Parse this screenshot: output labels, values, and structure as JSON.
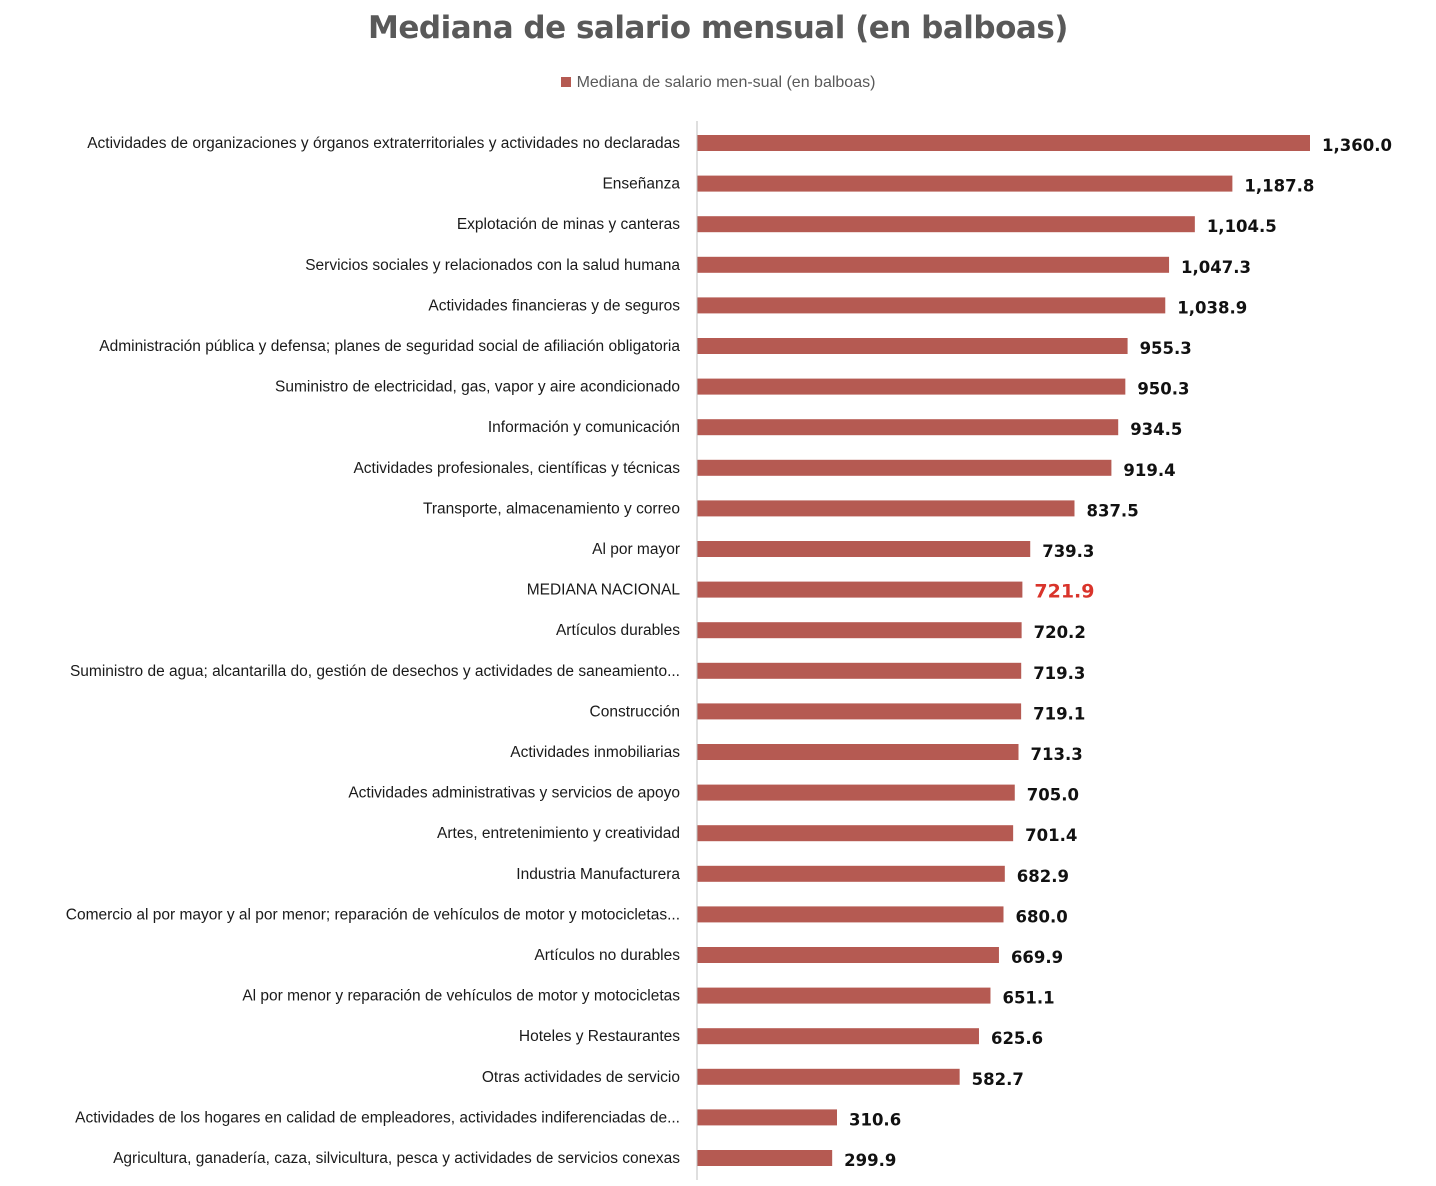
{
  "chart_data": {
    "type": "bar",
    "orientation": "horizontal",
    "title": "Mediana de salario mensual (en balboas)",
    "legend": {
      "position": "top",
      "entries": [
        "Mediana de salario men-sual (en balboas)"
      ]
    },
    "series": [
      {
        "name": "Mediana de salario men-sual (en balboas)",
        "color": "#b55a52"
      }
    ],
    "highlight_color": "#d9342b",
    "xlim": [
      0,
      1500
    ],
    "grid": false,
    "categories": [
      "Actividades de organizaciones y órganos extraterritoriales y  actividades no declaradas",
      "Enseñanza",
      "Explotación de minas y canteras",
      "Servicios sociales y relacionados  con la salud humana",
      "Actividades financieras y  de seguros",
      "Administración pública y defensa;  planes de seguridad social  de afiliación obligatoria",
      "Suministro de electricidad, gas, vapor y aire acondicionado",
      "Información y comunicación",
      "Actividades profesionales,  científicas y técnicas",
      "Transporte, almacenamiento y correo",
      "Al por mayor",
      "MEDIANA NACIONAL",
      "Artículos durables",
      "Suministro de agua; alcantarilla do,  gestión  de  desechos  y  actividades de saneamiento...",
      "Construcción",
      "Actividades inmobiliarias",
      "Actividades administrativas y  servicios de apoyo",
      "Artes, entretenimiento y  creatividad",
      "Industria Manufacturera",
      "Comercio  al por  mayor  y  al por  menor; reparación de vehículos  de motor y motocicletas...",
      "Artículos no durables",
      "Al por menor y reparación de  vehículos de motor y  motocicletas",
      "Hoteles y Restaurantes",
      "Otras actividades de servicio",
      "Actividades de los hogares en calidad de empleadores, actividades  indiferenciadas de...",
      "Agricultura,  ganadería,  caza,  silvicultura, pesca y actividades  de servicios conexas"
    ],
    "values": [
      1360.0,
      1187.8,
      1104.5,
      1047.3,
      1038.9,
      955.3,
      950.3,
      934.5,
      919.4,
      837.5,
      739.3,
      721.9,
      720.2,
      719.3,
      719.1,
      713.3,
      705.0,
      701.4,
      682.9,
      680.0,
      669.9,
      651.1,
      625.6,
      582.7,
      310.6,
      299.9
    ],
    "value_labels": [
      "1,360.0",
      "1,187.8",
      "1,104.5",
      "1,047.3",
      "1,038.9",
      "955.3",
      "950.3",
      "934.5",
      "919.4",
      "837.5",
      "739.3",
      "721.9",
      "720.2",
      "719.3",
      "719.1",
      "713.3",
      "705.0",
      "701.4",
      "682.9",
      "680.0",
      "669.9",
      "651.1",
      "625.6",
      "582.7",
      "310.6",
      "299.9"
    ],
    "highlight_category": "MEDIANA NACIONAL"
  }
}
